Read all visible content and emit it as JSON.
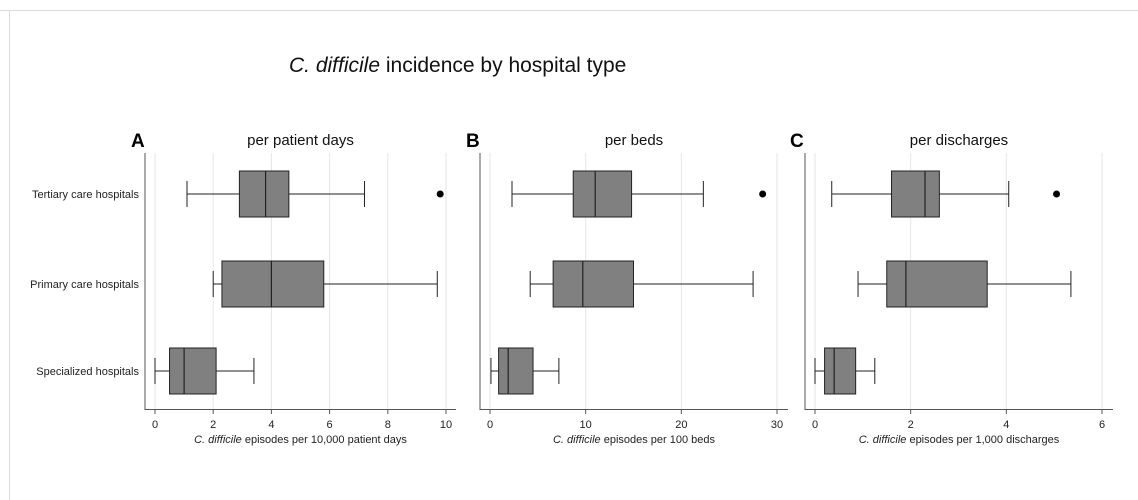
{
  "title": {
    "italic": "C. difficile",
    "rest": " incidence by hospital type"
  },
  "colors": {
    "box_fill": "#808080",
    "box_stroke": "#222222",
    "grid": "#e6e6e6",
    "axis": "#555555",
    "outlier": "#000000"
  },
  "chart_data": [
    {
      "type": "boxplot",
      "panel_letter": "A",
      "title": "per patient days",
      "xlabel_italic": "C. difficile",
      "xlabel_rest": " episodes per 10,000 patient days",
      "xlim": [
        0,
        10
      ],
      "xticks": [
        0,
        2,
        4,
        6,
        8,
        10
      ],
      "show_category_labels": true,
      "categories": [
        "Tertiary care hospitals",
        "Primary care hospitals",
        "Specialized hospitals"
      ],
      "boxes": [
        {
          "whisker_low": 1.1,
          "q1": 2.9,
          "median": 3.8,
          "q3": 4.6,
          "whisker_high": 7.2,
          "outliers": [
            9.8
          ]
        },
        {
          "whisker_low": 2.0,
          "q1": 2.3,
          "median": 4.0,
          "q3": 5.8,
          "whisker_high": 9.7,
          "outliers": []
        },
        {
          "whisker_low": 0.0,
          "q1": 0.5,
          "median": 1.0,
          "q3": 2.1,
          "whisker_high": 3.4,
          "outliers": []
        }
      ]
    },
    {
      "type": "boxplot",
      "panel_letter": "B",
      "title": "per beds",
      "xlabel_italic": "C. difficile",
      "xlabel_rest": " episodes per 100 beds",
      "xlim": [
        0,
        30
      ],
      "xticks": [
        0,
        10,
        20,
        30
      ],
      "show_category_labels": false,
      "categories": [
        "Tertiary care hospitals",
        "Primary care hospitals",
        "Specialized hospitals"
      ],
      "boxes": [
        {
          "whisker_low": 2.3,
          "q1": 8.7,
          "median": 11.0,
          "q3": 14.8,
          "whisker_high": 22.3,
          "outliers": [
            28.5
          ]
        },
        {
          "whisker_low": 4.2,
          "q1": 6.6,
          "median": 9.7,
          "q3": 15.0,
          "whisker_high": 27.5,
          "outliers": []
        },
        {
          "whisker_low": 0.1,
          "q1": 0.9,
          "median": 1.9,
          "q3": 4.5,
          "whisker_high": 7.2,
          "outliers": []
        }
      ]
    },
    {
      "type": "boxplot",
      "panel_letter": "C",
      "title": "per discharges",
      "xlabel_italic": "C. difficile",
      "xlabel_rest": " episodes per 1,000 discharges",
      "xlim": [
        0,
        6
      ],
      "xticks": [
        0,
        2,
        4,
        6
      ],
      "show_category_labels": false,
      "categories": [
        "Tertiary care hospitals",
        "Primary care hospitals",
        "Specialized hospitals"
      ],
      "boxes": [
        {
          "whisker_low": 0.35,
          "q1": 1.6,
          "median": 2.3,
          "q3": 2.6,
          "whisker_high": 4.05,
          "outliers": [
            5.05
          ]
        },
        {
          "whisker_low": 0.9,
          "q1": 1.5,
          "median": 1.9,
          "q3": 3.6,
          "whisker_high": 5.35,
          "outliers": []
        },
        {
          "whisker_low": 0.0,
          "q1": 0.2,
          "median": 0.4,
          "q3": 0.85,
          "whisker_high": 1.25,
          "outliers": []
        }
      ]
    }
  ]
}
